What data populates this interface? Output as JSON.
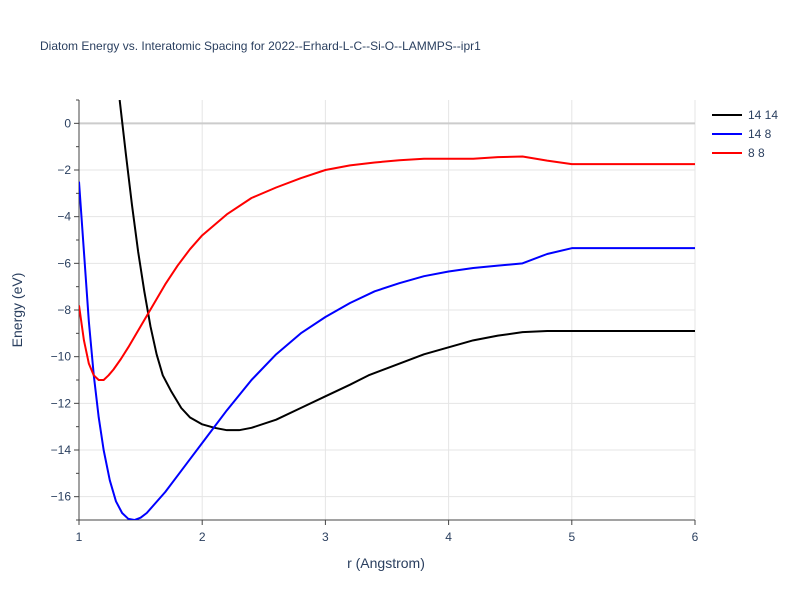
{
  "chart_data": {
    "type": "line",
    "title": "Diatom Energy vs. Interatomic Spacing for 2022--Erhard-L-C--Si-O--LAMMPS--ipr1",
    "xlabel": "r (Angstrom)",
    "ylabel": "Energy (eV)",
    "xlim": [
      1,
      6
    ],
    "ylim": [
      -17,
      1
    ],
    "xticks": [
      1,
      2,
      3,
      4,
      5,
      6
    ],
    "xtick_labels": [
      "1",
      "2",
      "3",
      "4",
      "5",
      "6"
    ],
    "yticks": [
      0,
      -2,
      -4,
      -6,
      -8,
      -10,
      -12,
      -14,
      -16
    ],
    "ytick_labels": [
      "0",
      "−2",
      "−4",
      "−6",
      "−8",
      "−10",
      "−12",
      "−14",
      "−16"
    ],
    "grid": true,
    "legend_position": "top-right",
    "series": [
      {
        "name": "14 14",
        "color": "#000000",
        "x": [
          1.33,
          1.38,
          1.43,
          1.48,
          1.53,
          1.58,
          1.63,
          1.68,
          1.75,
          1.83,
          1.9,
          2.0,
          2.1,
          2.2,
          2.3,
          2.4,
          2.6,
          2.8,
          3.0,
          3.2,
          3.35,
          3.5,
          3.65,
          3.8,
          4.0,
          4.2,
          4.4,
          4.6,
          4.8,
          5.0,
          5.5,
          6.0
        ],
        "y": [
          1.0,
          -1.3,
          -3.5,
          -5.5,
          -7.2,
          -8.7,
          -9.9,
          -10.8,
          -11.5,
          -12.2,
          -12.6,
          -12.9,
          -13.05,
          -13.15,
          -13.15,
          -13.05,
          -12.7,
          -12.2,
          -11.7,
          -11.2,
          -10.8,
          -10.5,
          -10.2,
          -9.9,
          -9.6,
          -9.3,
          -9.1,
          -8.95,
          -8.9,
          -8.9,
          -8.9,
          -8.9
        ]
      },
      {
        "name": "14 8",
        "color": "#0000ff",
        "x": [
          1.0,
          1.04,
          1.08,
          1.12,
          1.16,
          1.2,
          1.25,
          1.3,
          1.35,
          1.4,
          1.45,
          1.5,
          1.55,
          1.6,
          1.7,
          1.8,
          1.9,
          2.0,
          2.2,
          2.4,
          2.6,
          2.8,
          3.0,
          3.2,
          3.4,
          3.6,
          3.8,
          4.0,
          4.2,
          4.4,
          4.6,
          4.8,
          5.0,
          5.5,
          6.0
        ],
        "y": [
          -2.5,
          -5.5,
          -8.5,
          -10.8,
          -12.6,
          -14.0,
          -15.3,
          -16.2,
          -16.7,
          -16.95,
          -17.0,
          -16.9,
          -16.7,
          -16.4,
          -15.8,
          -15.1,
          -14.4,
          -13.7,
          -12.3,
          -11.0,
          -9.9,
          -9.0,
          -8.3,
          -7.7,
          -7.2,
          -6.85,
          -6.55,
          -6.35,
          -6.2,
          -6.1,
          -6.0,
          -5.6,
          -5.35,
          -5.35,
          -5.35
        ]
      },
      {
        "name": "8 8",
        "color": "#ff0000",
        "x": [
          1.0,
          1.04,
          1.08,
          1.12,
          1.16,
          1.2,
          1.24,
          1.28,
          1.34,
          1.4,
          1.5,
          1.6,
          1.7,
          1.8,
          1.9,
          2.0,
          2.2,
          2.4,
          2.6,
          2.8,
          3.0,
          3.2,
          3.4,
          3.6,
          3.8,
          4.0,
          4.2,
          4.4,
          4.6,
          4.8,
          5.0,
          5.5,
          6.0
        ],
        "y": [
          -7.8,
          -9.3,
          -10.3,
          -10.8,
          -11.0,
          -11.0,
          -10.8,
          -10.55,
          -10.1,
          -9.6,
          -8.7,
          -7.8,
          -6.9,
          -6.1,
          -5.4,
          -4.8,
          -3.9,
          -3.2,
          -2.75,
          -2.35,
          -2.0,
          -1.8,
          -1.68,
          -1.58,
          -1.52,
          -1.52,
          -1.52,
          -1.45,
          -1.42,
          -1.6,
          -1.75,
          -1.75,
          -1.75
        ]
      }
    ]
  }
}
